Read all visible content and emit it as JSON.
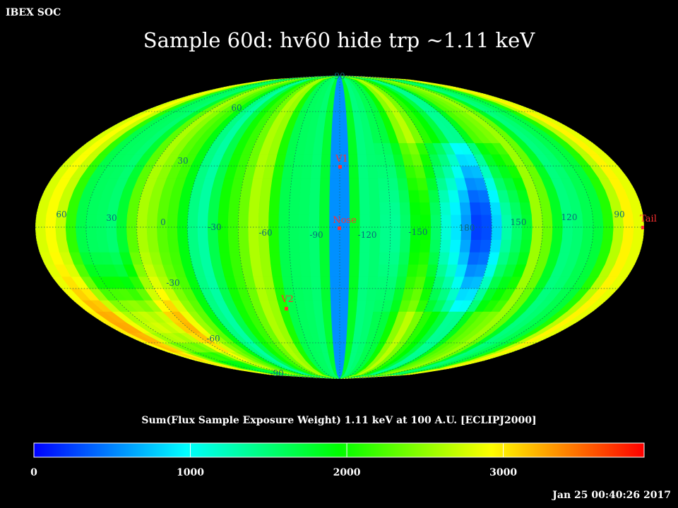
{
  "header": {
    "org_label": "IBEX SOC",
    "title": "Sample 60d: hv60 hide trp ~1.11 keV"
  },
  "map": {
    "projection": "Mollweide",
    "parallel_labels": {
      "north": [
        "90",
        "60",
        "30"
      ],
      "south": [
        "-30",
        "-60",
        "-90"
      ]
    },
    "meridian_labels": [
      "60",
      "30",
      "0",
      "-30",
      "-60",
      "-90",
      "-120",
      "-150",
      "180",
      "150",
      "120",
      "90"
    ],
    "markers": [
      {
        "label": "V1",
        "lon": -90,
        "lat": 34
      },
      {
        "label": "Nose",
        "lon": -90,
        "lat": 0
      },
      {
        "label": "V2",
        "lon": -63,
        "lat": -34
      },
      {
        "label": "Tail",
        "lon": 90,
        "lat": 0
      }
    ],
    "marker_color": "#ff3030"
  },
  "colorbar": {
    "title": "Sum(Flux Sample Exposure Weight)  1.11 keV at 100 A.U. [ECLIPJ2000]",
    "tick_labels": [
      "0",
      "1000",
      "2000",
      "3000"
    ],
    "tick_values": [
      0,
      1000,
      2000,
      3000
    ],
    "max_value": 3900,
    "stops": [
      "#0000ff",
      "#00ffff",
      "#00ff00",
      "#ffff00",
      "#ff0000"
    ]
  },
  "footer": {
    "timestamp": "Jan 25 00:40:26 2017"
  }
}
